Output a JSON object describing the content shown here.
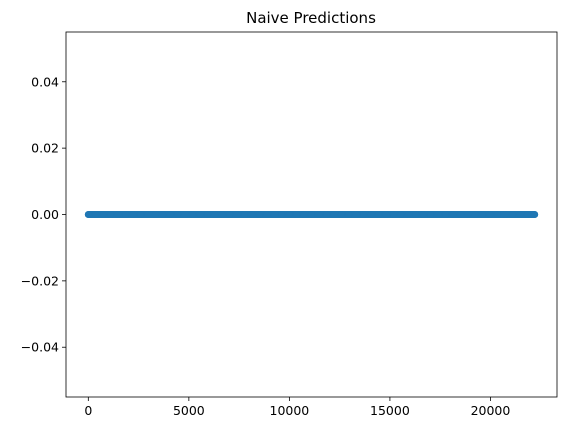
{
  "chart_data": {
    "type": "scatter",
    "title": "Naive Predictions",
    "xlabel": "",
    "ylabel": "",
    "xlim": [
      -1110,
      23310
    ],
    "ylim": [
      -0.055,
      0.055
    ],
    "x_ticks": [
      0,
      5000,
      10000,
      15000,
      20000
    ],
    "x_tick_labels": [
      "0",
      "5000",
      "10000",
      "15000",
      "20000"
    ],
    "y_ticks": [
      -0.04,
      -0.02,
      0.0,
      0.02,
      0.04
    ],
    "y_tick_labels": [
      "−0.04",
      "−0.02",
      "0.00",
      "0.02",
      "0.04"
    ],
    "grid": false,
    "series": [
      {
        "color": "#1f77b4",
        "x_range": [
          0,
          22200
        ],
        "y_constant": 0.0
      }
    ]
  }
}
